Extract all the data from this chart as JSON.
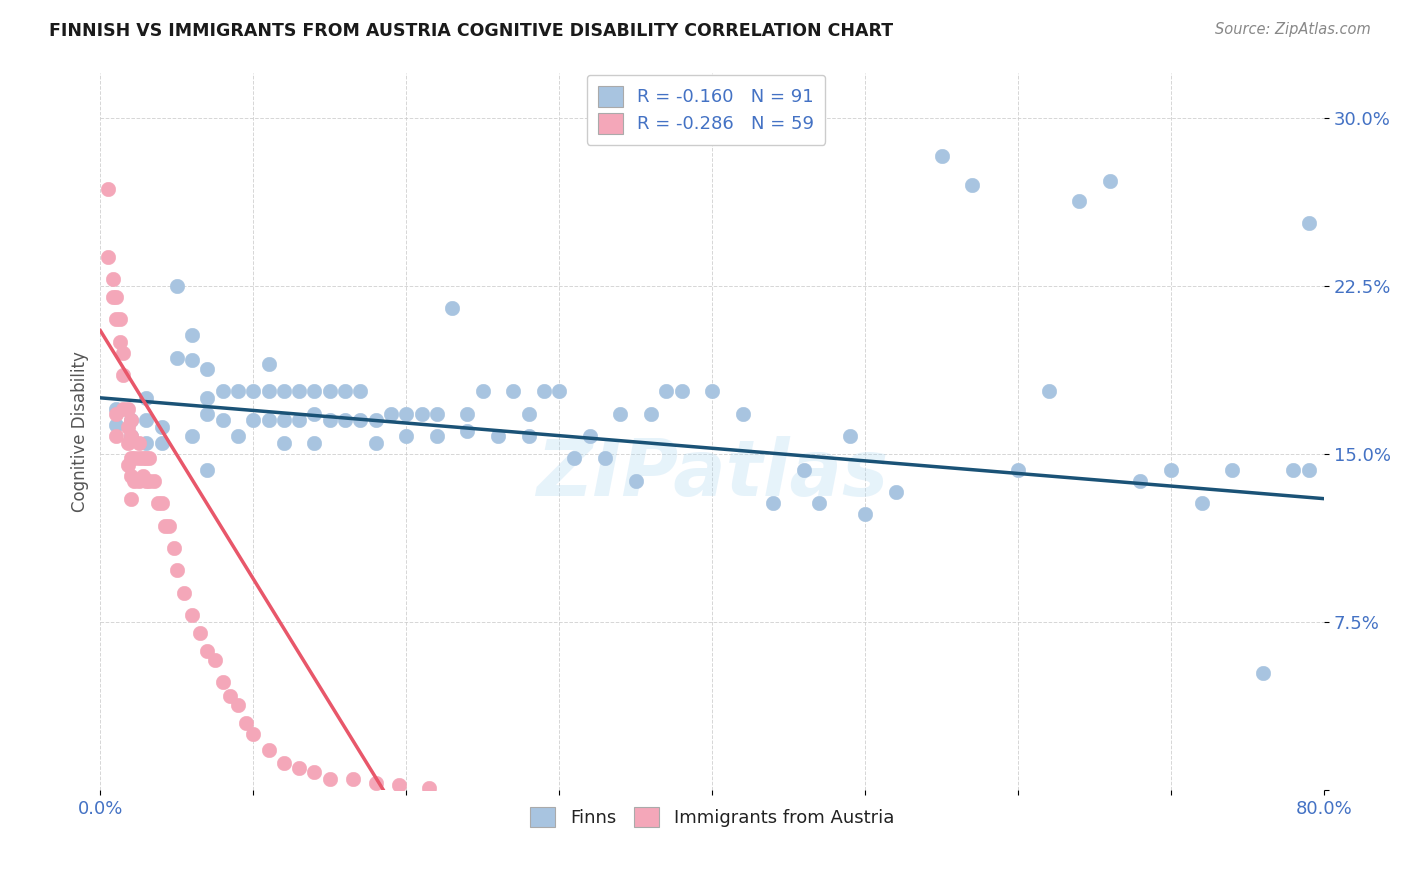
{
  "title": "FINNISH VS IMMIGRANTS FROM AUSTRIA COGNITIVE DISABILITY CORRELATION CHART",
  "source": "Source: ZipAtlas.com",
  "ylabel": "Cognitive Disability",
  "xlim": [
    0.0,
    0.8
  ],
  "ylim": [
    0.0,
    0.32
  ],
  "xticks": [
    0.0,
    0.1,
    0.2,
    0.3,
    0.4,
    0.5,
    0.6,
    0.7,
    0.8
  ],
  "xticklabels": [
    "0.0%",
    "",
    "",
    "",
    "",
    "",
    "",
    "",
    "80.0%"
  ],
  "yticks": [
    0.0,
    0.075,
    0.15,
    0.225,
    0.3
  ],
  "yticklabels": [
    "",
    "7.5%",
    "15.0%",
    "22.5%",
    "30.0%"
  ],
  "legend_R_finns": "-0.160",
  "legend_N_finns": "91",
  "legend_R_austria": "-0.286",
  "legend_N_austria": "59",
  "color_finns": "#a8c4e0",
  "color_austria": "#f4a7b9",
  "color_finns_line": "#1a5276",
  "color_austria_line": "#e8576a",
  "color_austria_line_dashed": "#f0b0bb",
  "watermark": "ZIPatlas",
  "finns_x": [
    0.01,
    0.01,
    0.02,
    0.02,
    0.03,
    0.03,
    0.03,
    0.04,
    0.04,
    0.05,
    0.05,
    0.06,
    0.06,
    0.06,
    0.07,
    0.07,
    0.07,
    0.07,
    0.08,
    0.08,
    0.09,
    0.09,
    0.1,
    0.1,
    0.11,
    0.11,
    0.11,
    0.12,
    0.12,
    0.12,
    0.13,
    0.13,
    0.14,
    0.14,
    0.14,
    0.15,
    0.15,
    0.16,
    0.16,
    0.17,
    0.17,
    0.18,
    0.18,
    0.19,
    0.2,
    0.2,
    0.21,
    0.22,
    0.22,
    0.23,
    0.24,
    0.24,
    0.25,
    0.26,
    0.27,
    0.28,
    0.28,
    0.29,
    0.3,
    0.31,
    0.32,
    0.33,
    0.34,
    0.35,
    0.36,
    0.37,
    0.38,
    0.4,
    0.42,
    0.44,
    0.46,
    0.47,
    0.49,
    0.5,
    0.52,
    0.55,
    0.57,
    0.6,
    0.62,
    0.64,
    0.66,
    0.68,
    0.7,
    0.72,
    0.74,
    0.76,
    0.78,
    0.79,
    0.79
  ],
  "finns_y": [
    0.17,
    0.163,
    0.165,
    0.158,
    0.175,
    0.165,
    0.155,
    0.162,
    0.155,
    0.225,
    0.193,
    0.203,
    0.192,
    0.158,
    0.188,
    0.175,
    0.168,
    0.143,
    0.178,
    0.165,
    0.178,
    0.158,
    0.178,
    0.165,
    0.19,
    0.178,
    0.165,
    0.178,
    0.165,
    0.155,
    0.178,
    0.165,
    0.178,
    0.168,
    0.155,
    0.178,
    0.165,
    0.178,
    0.165,
    0.178,
    0.165,
    0.165,
    0.155,
    0.168,
    0.168,
    0.158,
    0.168,
    0.168,
    0.158,
    0.215,
    0.168,
    0.16,
    0.178,
    0.158,
    0.178,
    0.168,
    0.158,
    0.178,
    0.178,
    0.148,
    0.158,
    0.148,
    0.168,
    0.138,
    0.168,
    0.178,
    0.178,
    0.178,
    0.168,
    0.128,
    0.143,
    0.128,
    0.158,
    0.123,
    0.133,
    0.283,
    0.27,
    0.143,
    0.178,
    0.263,
    0.272,
    0.138,
    0.143,
    0.128,
    0.143,
    0.052,
    0.143,
    0.253,
    0.143
  ],
  "austria_x": [
    0.005,
    0.005,
    0.008,
    0.008,
    0.01,
    0.01,
    0.01,
    0.01,
    0.013,
    0.013,
    0.015,
    0.015,
    0.015,
    0.018,
    0.018,
    0.018,
    0.018,
    0.02,
    0.02,
    0.02,
    0.02,
    0.02,
    0.022,
    0.022,
    0.025,
    0.025,
    0.025,
    0.028,
    0.028,
    0.03,
    0.03,
    0.032,
    0.032,
    0.035,
    0.038,
    0.04,
    0.042,
    0.045,
    0.048,
    0.05,
    0.055,
    0.06,
    0.065,
    0.07,
    0.075,
    0.08,
    0.085,
    0.09,
    0.095,
    0.1,
    0.11,
    0.12,
    0.13,
    0.14,
    0.15,
    0.165,
    0.18,
    0.195,
    0.215
  ],
  "austria_y": [
    0.268,
    0.238,
    0.228,
    0.22,
    0.22,
    0.21,
    0.168,
    0.158,
    0.21,
    0.2,
    0.195,
    0.185,
    0.17,
    0.17,
    0.162,
    0.155,
    0.145,
    0.165,
    0.158,
    0.148,
    0.14,
    0.13,
    0.148,
    0.138,
    0.155,
    0.148,
    0.138,
    0.148,
    0.14,
    0.148,
    0.138,
    0.148,
    0.138,
    0.138,
    0.128,
    0.128,
    0.118,
    0.118,
    0.108,
    0.098,
    0.088,
    0.078,
    0.07,
    0.062,
    0.058,
    0.048,
    0.042,
    0.038,
    0.03,
    0.025,
    0.018,
    0.012,
    0.01,
    0.008,
    0.005,
    0.005,
    0.003,
    0.002,
    0.001
  ],
  "background_color": "#ffffff",
  "grid_color": "#cccccc"
}
